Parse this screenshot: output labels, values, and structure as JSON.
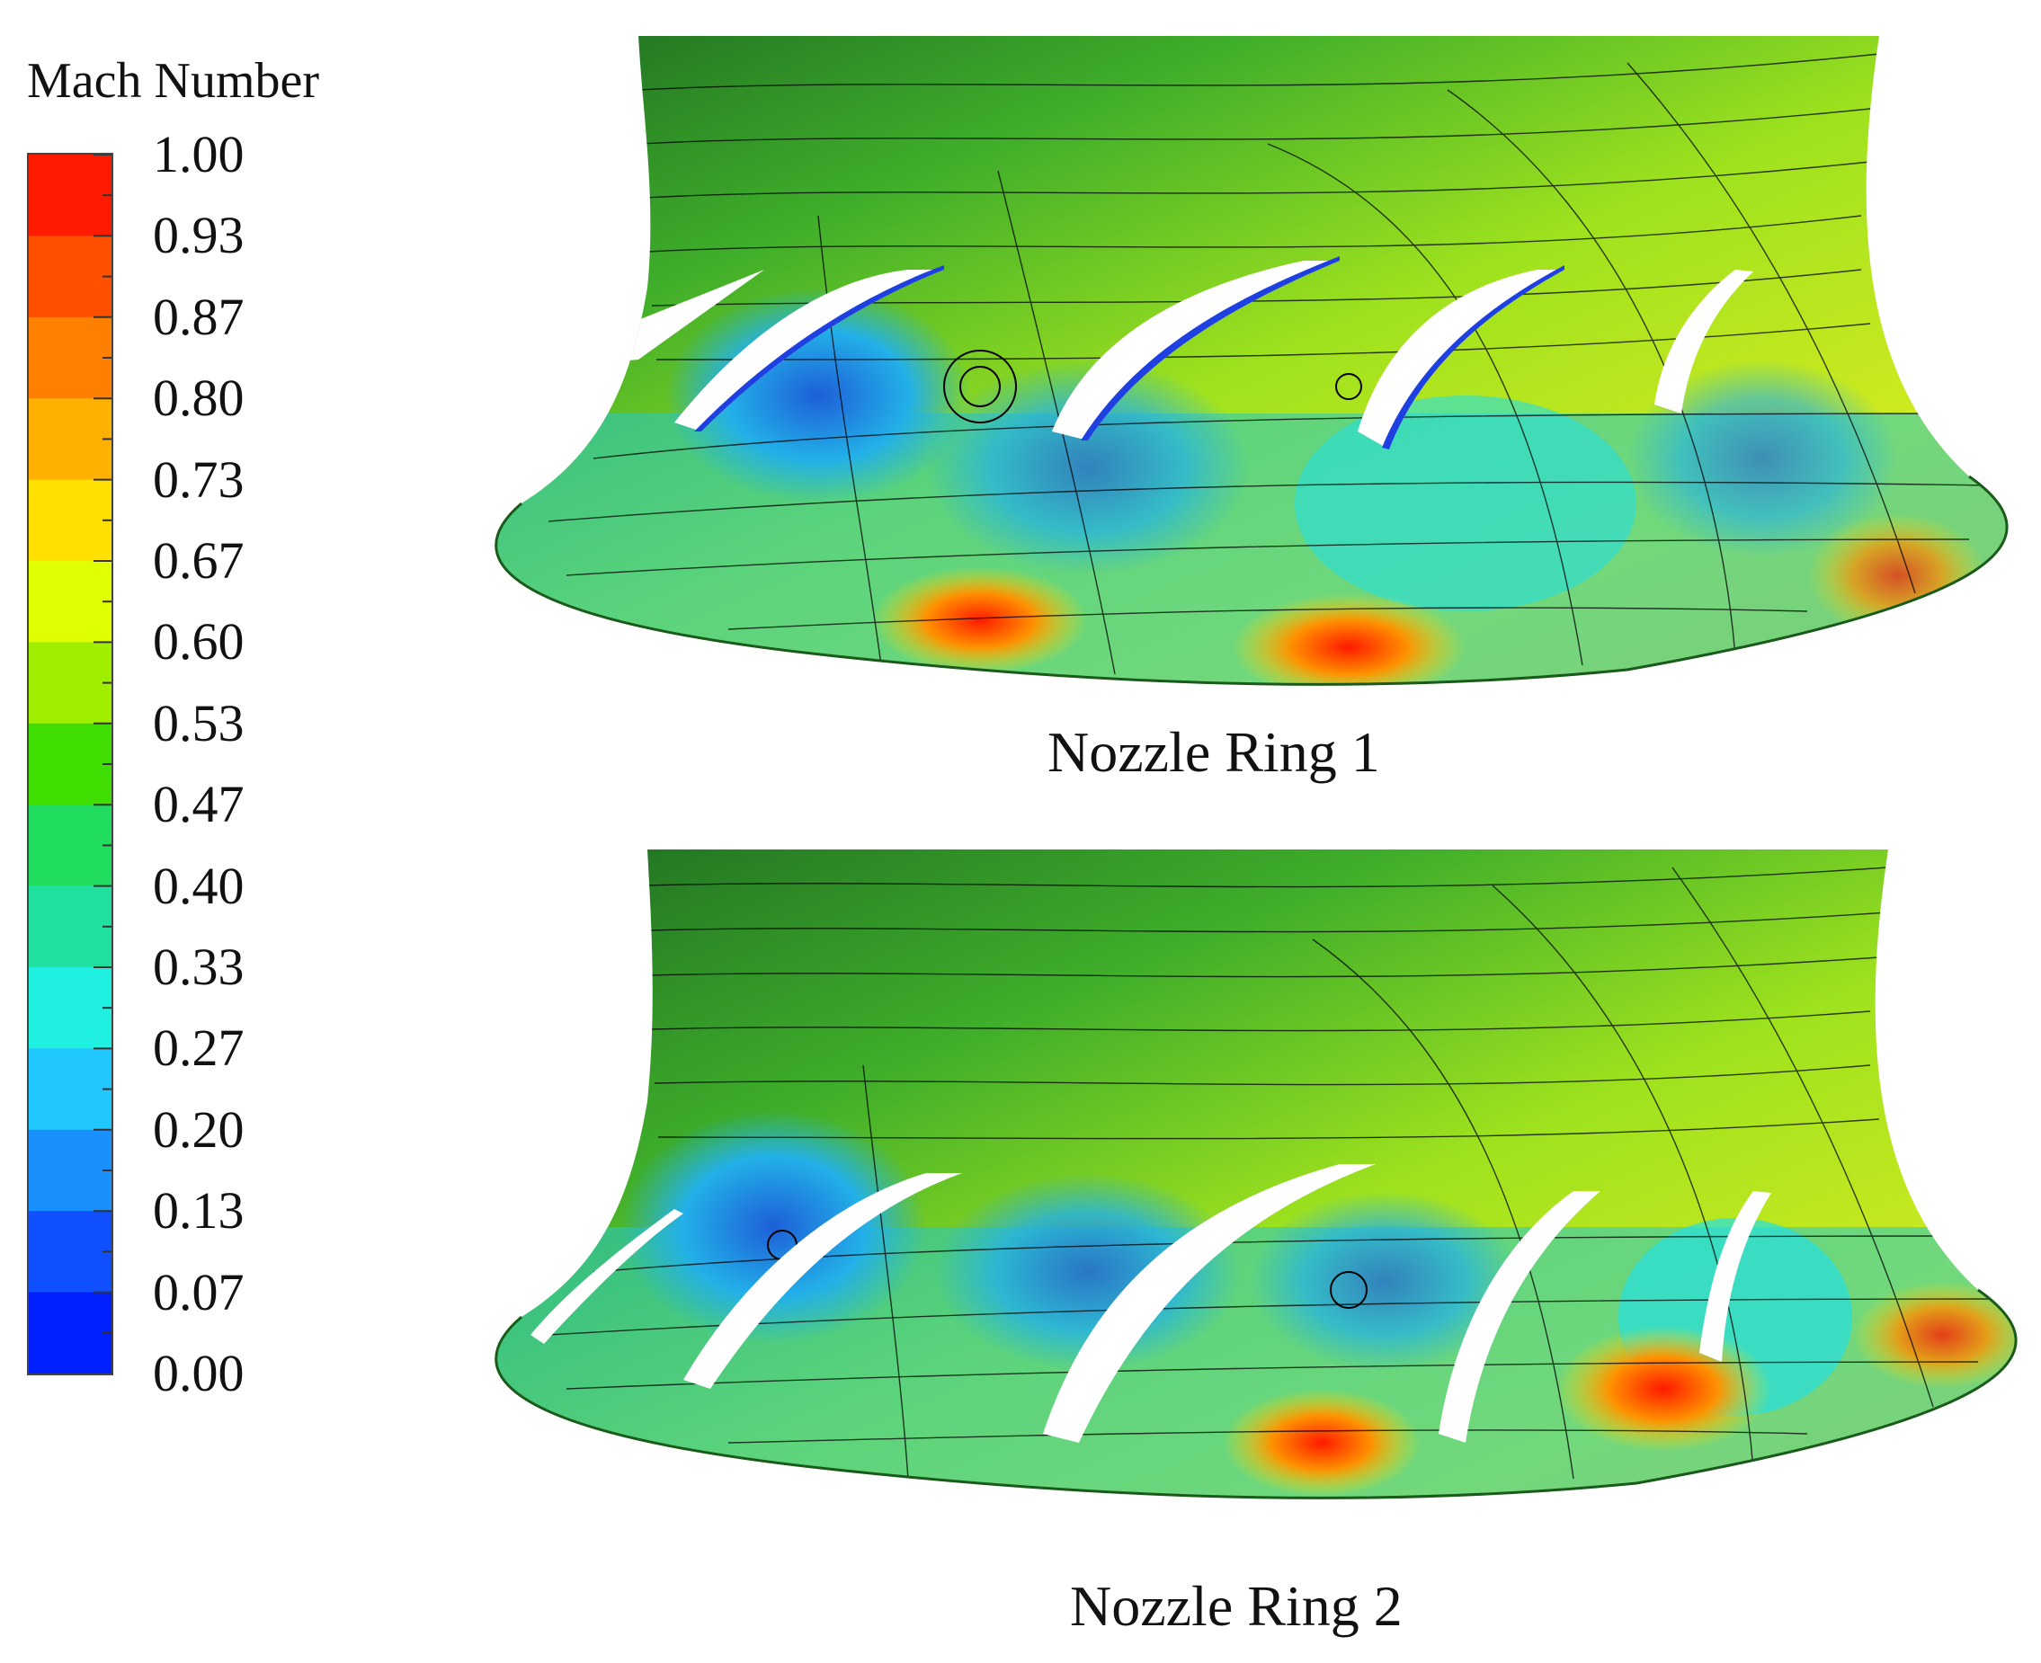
{
  "legend": {
    "title": "Mach Number",
    "ticks": [
      "1.00",
      "0.93",
      "0.87",
      "0.80",
      "0.73",
      "0.67",
      "0.60",
      "0.53",
      "0.47",
      "0.40",
      "0.33",
      "0.27",
      "0.20",
      "0.13",
      "0.07",
      "0.00"
    ],
    "colors": [
      "#ff1a00",
      "#ff5000",
      "#ff8000",
      "#ffb000",
      "#ffe000",
      "#e0ff00",
      "#a0ee00",
      "#40dd00",
      "#20dd60",
      "#20e0a0",
      "#20f0e0",
      "#20c8ff",
      "#1a90ff",
      "#1050ff",
      "#0020ff"
    ]
  },
  "panels": [
    {
      "caption": "Nozzle Ring 1"
    },
    {
      "caption": "Nozzle Ring 2"
    }
  ]
}
